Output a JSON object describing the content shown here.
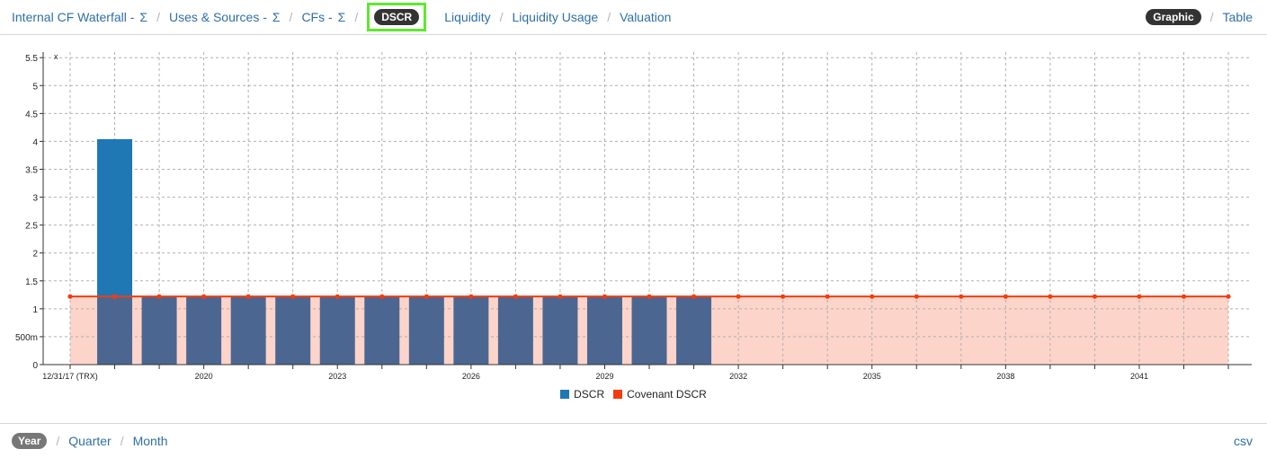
{
  "nav": {
    "items": [
      {
        "label": "Internal CF Waterfall -",
        "sigma": "Σ"
      },
      {
        "label": "Uses & Sources -",
        "sigma": "Σ"
      },
      {
        "label": "CFs -",
        "sigma": "Σ"
      },
      {
        "label": "DSCR",
        "active": true
      },
      {
        "label": "Liquidity"
      },
      {
        "label": "Liquidity Usage"
      },
      {
        "label": "Valuation"
      }
    ],
    "separator": "/",
    "view_graphic": "Graphic",
    "view_table": "Table"
  },
  "bottom": {
    "period_year": "Year",
    "period_quarter": "Quarter",
    "period_month": "Month",
    "csv": "csv"
  },
  "colors": {
    "dscr_bar": "#1f77b4",
    "overlap_bar": "#4b6791",
    "covenant": "#f23c0f",
    "covenant_fill": "#fdd4ca",
    "link": "#2f6fa7"
  },
  "chart_data": {
    "type": "bar",
    "x_tick_labels": [
      {
        "index": 0,
        "label": "12/31/17 (TRX)"
      },
      {
        "index": 3,
        "label": "2020"
      },
      {
        "index": 6,
        "label": "2023"
      },
      {
        "index": 9,
        "label": "2026"
      },
      {
        "index": 12,
        "label": "2029"
      },
      {
        "index": 15,
        "label": "2032"
      },
      {
        "index": 18,
        "label": "2035"
      },
      {
        "index": 21,
        "label": "2038"
      },
      {
        "index": 24,
        "label": "2041"
      }
    ],
    "y_unit_label": "x",
    "y_ticks": [
      {
        "value": 0,
        "label": "0"
      },
      {
        "value": 0.5,
        "label": "500m"
      },
      {
        "value": 1,
        "label": "1"
      },
      {
        "value": 1.5,
        "label": "1.5"
      },
      {
        "value": 2,
        "label": "2"
      },
      {
        "value": 2.5,
        "label": "2.5"
      },
      {
        "value": 3,
        "label": "3"
      },
      {
        "value": 3.5,
        "label": "3.5"
      },
      {
        "value": 4,
        "label": "4"
      },
      {
        "value": 4.5,
        "label": "4.5"
      },
      {
        "value": 5,
        "label": "5"
      },
      {
        "value": 5.5,
        "label": "5.5"
      }
    ],
    "ylim": [
      0,
      5.6
    ],
    "grid": true,
    "legend_position": "bottom-center",
    "series": [
      {
        "name": "DSCR",
        "type": "bar",
        "values": [
          4.04,
          1.22,
          1.22,
          1.22,
          1.22,
          1.22,
          1.22,
          1.22,
          1.22,
          1.22,
          1.22,
          1.22,
          1.22,
          1.22
        ]
      },
      {
        "name": "Covenant DSCR",
        "type": "line",
        "values": [
          1.22,
          1.22,
          1.22,
          1.22,
          1.22,
          1.22,
          1.22,
          1.22,
          1.22,
          1.22,
          1.22,
          1.22,
          1.22,
          1.22,
          1.22,
          1.22,
          1.22,
          1.22,
          1.22,
          1.22,
          1.22,
          1.22,
          1.22,
          1.22,
          1.22,
          1.22,
          1.22
        ]
      }
    ]
  }
}
